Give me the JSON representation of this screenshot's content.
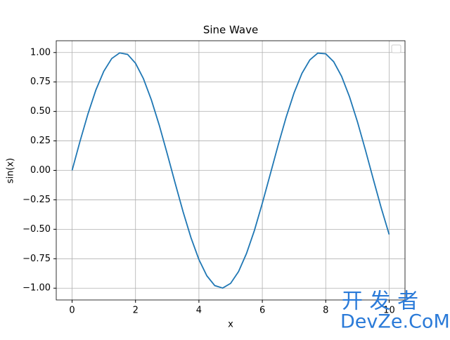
{
  "chart_data": {
    "type": "line",
    "title": "Sine Wave",
    "x_label": "x",
    "y_label": "sin(x)",
    "x": [
      0,
      0.25,
      0.5,
      0.75,
      1,
      1.25,
      1.5,
      1.75,
      2,
      2.25,
      2.5,
      2.75,
      3,
      3.25,
      3.5,
      3.75,
      4,
      4.25,
      4.5,
      4.75,
      5,
      5.25,
      5.5,
      5.75,
      6,
      6.25,
      6.5,
      6.75,
      7,
      7.25,
      7.5,
      7.75,
      8,
      8.25,
      8.5,
      8.75,
      9,
      9.25,
      9.5,
      9.75,
      10
    ],
    "series": [
      {
        "color": "#1f77b4",
        "values": [
          0,
          0.247,
          0.479,
          0.682,
          0.841,
          0.949,
          0.997,
          0.984,
          0.909,
          0.778,
          0.598,
          0.382,
          0.141,
          -0.108,
          -0.351,
          -0.572,
          -0.757,
          -0.895,
          -0.978,
          -0.999,
          -0.959,
          -0.859,
          -0.706,
          -0.51,
          -0.279,
          -0.033,
          0.215,
          0.45,
          0.657,
          0.823,
          0.938,
          0.995,
          0.989,
          0.922,
          0.798,
          0.624,
          0.412,
          0.174,
          -0.075,
          -0.319,
          -0.544
        ]
      }
    ],
    "xlim": [
      -0.5,
      10.5
    ],
    "xticks": [
      0,
      2,
      4,
      6,
      8,
      10
    ],
    "ylim": [
      -1.1,
      1.1
    ],
    "yticks": [
      {
        "value": -1,
        "label": "−1.00"
      },
      {
        "value": -0.75,
        "label": "−0.75"
      },
      {
        "value": -0.5,
        "label": "−0.50"
      },
      {
        "value": -0.25,
        "label": "−0.25"
      },
      {
        "value": 0,
        "label": "0.00"
      },
      {
        "value": 0.25,
        "label": "0.25"
      },
      {
        "value": 0.5,
        "label": "0.50"
      },
      {
        "value": 0.75,
        "label": "0.75"
      },
      {
        "value": 1,
        "label": "1.00"
      }
    ],
    "grid": true
  },
  "watermark": {
    "line1": "开 发 者",
    "line2": "DevZe.CoM"
  }
}
